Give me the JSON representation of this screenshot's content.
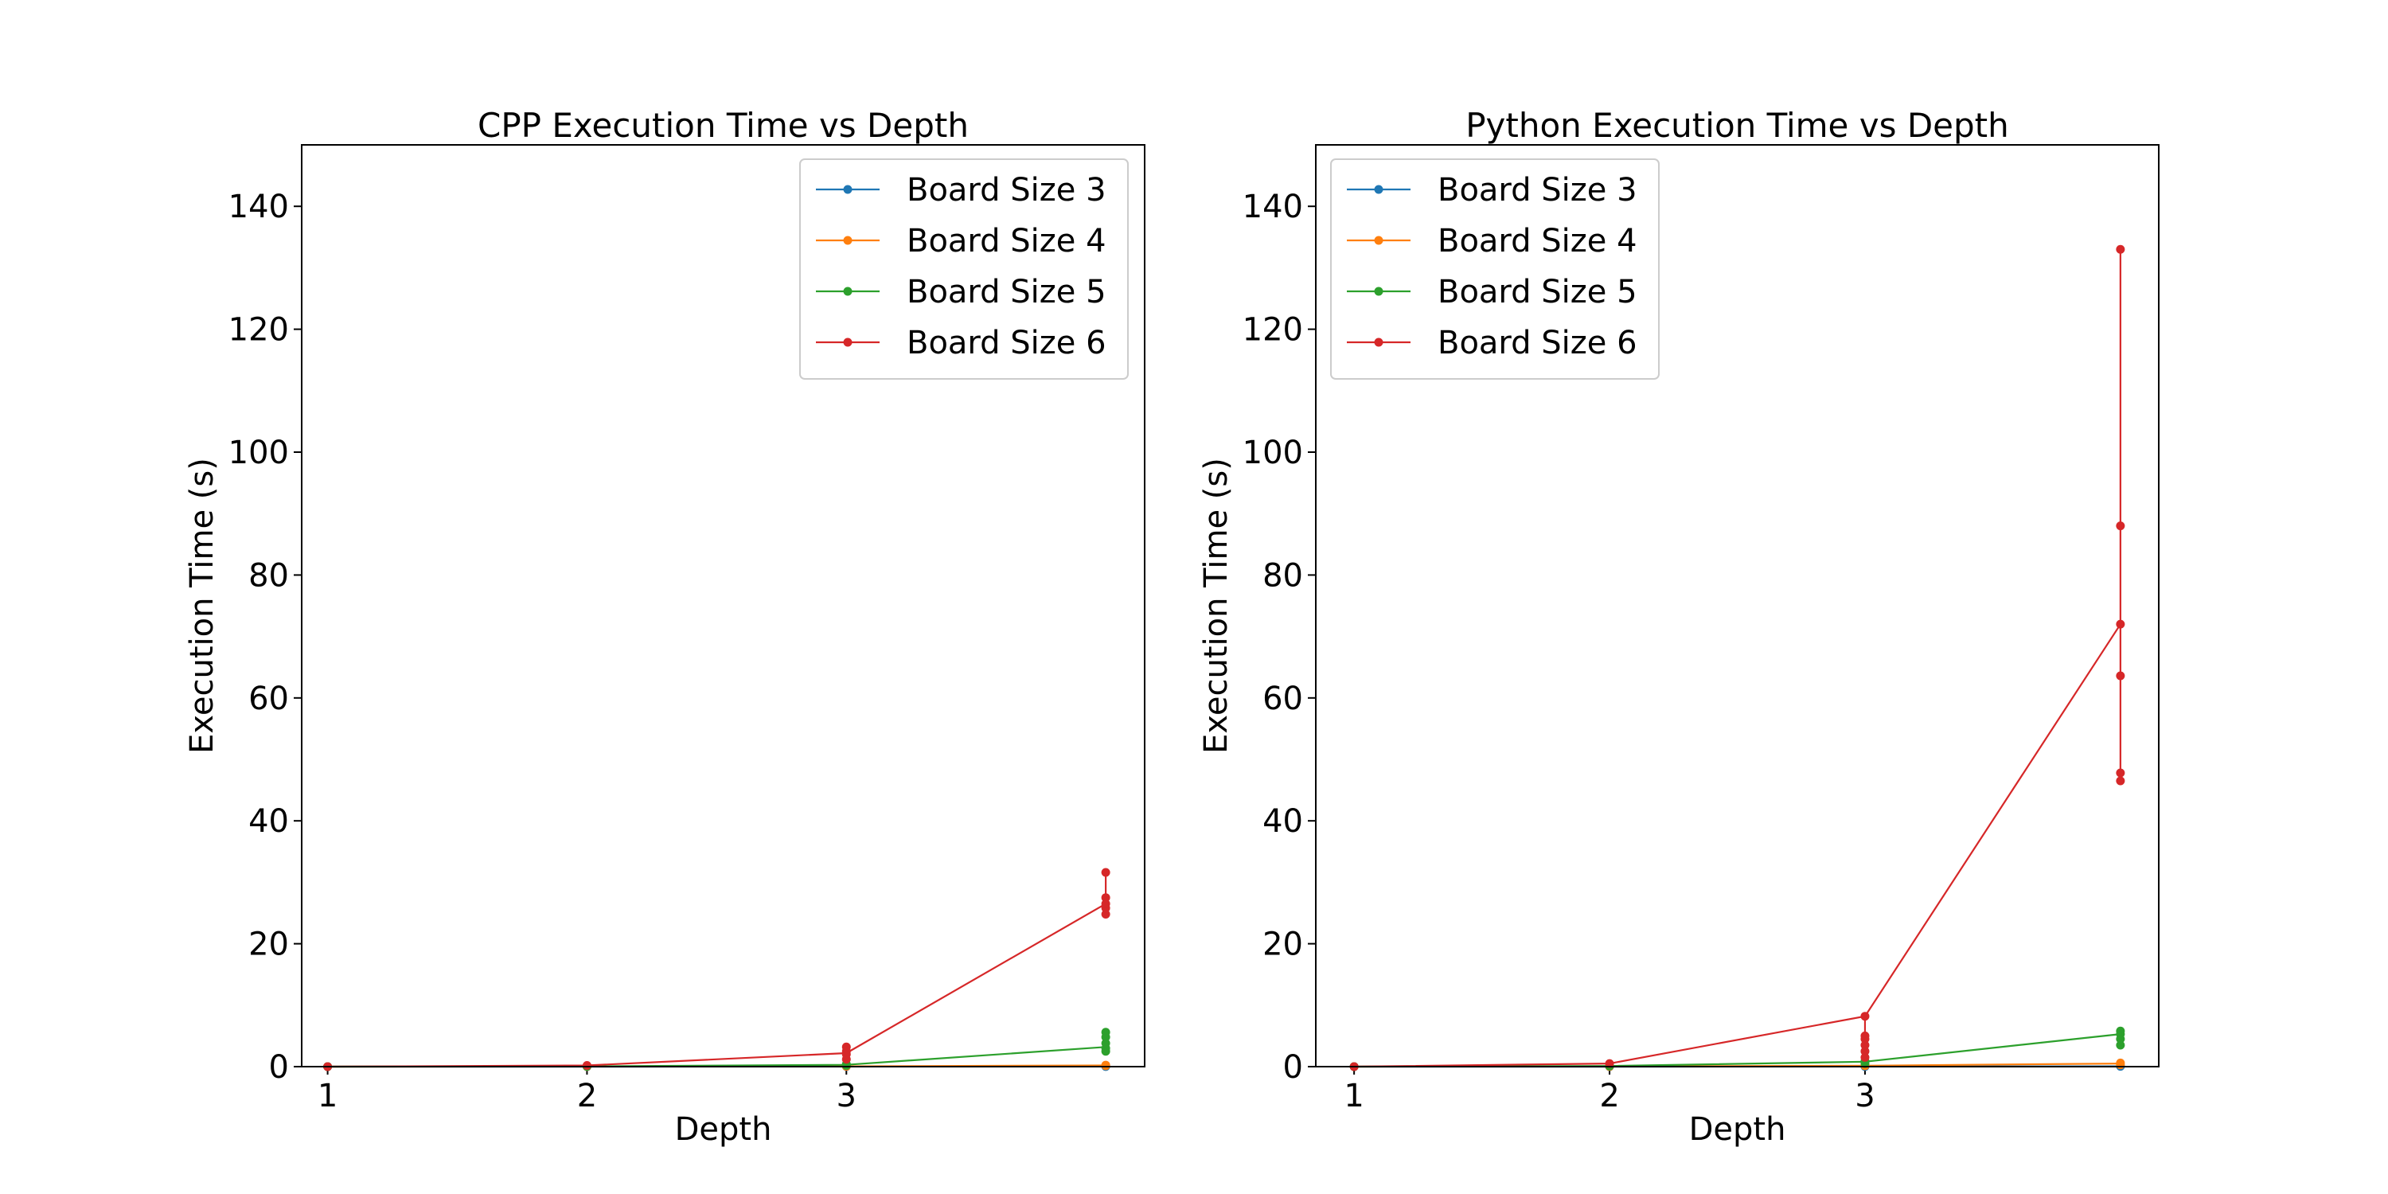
{
  "chart_data": [
    {
      "type": "line",
      "title": "CPP Execution Time vs Depth",
      "xlabel": "Depth",
      "ylabel": "Execution Time (s)",
      "xlim": [
        0.9,
        4.15
      ],
      "ylim": [
        0,
        150
      ],
      "xticks": [
        1,
        2,
        3
      ],
      "yticks": [
        0,
        20,
        40,
        60,
        80,
        100,
        120,
        140
      ],
      "legend_position": "upper right",
      "grid": false,
      "series": [
        {
          "name": "Board Size 3",
          "color": "#1f77b4",
          "x": [
            1,
            2,
            3,
            4
          ],
          "y": [
            0.0,
            0.0,
            0.01,
            0.02
          ],
          "points": [
            [
              1,
              0.0
            ],
            [
              2,
              0.0
            ],
            [
              3,
              0.01
            ],
            [
              4,
              0.02
            ]
          ]
        },
        {
          "name": "Board Size 4",
          "color": "#ff7f0e",
          "x": [
            1,
            2,
            3,
            4
          ],
          "y": [
            0.0,
            0.01,
            0.05,
            0.2
          ],
          "points": [
            [
              1,
              0.0
            ],
            [
              2,
              0.01
            ],
            [
              3,
              0.05
            ],
            [
              4,
              0.15
            ],
            [
              4,
              0.25
            ]
          ]
        },
        {
          "name": "Board Size 5",
          "color": "#2ca02c",
          "x": [
            1,
            2,
            3,
            4
          ],
          "y": [
            0.0,
            0.05,
            0.3,
            3.2
          ],
          "points": [
            [
              1,
              0.0
            ],
            [
              2,
              0.05
            ],
            [
              3,
              0.2
            ],
            [
              3,
              0.4
            ],
            [
              4,
              2.5
            ],
            [
              4,
              3.0
            ],
            [
              4,
              3.8
            ],
            [
              4,
              4.8
            ],
            [
              4,
              5.6
            ]
          ]
        },
        {
          "name": "Board Size 6",
          "color": "#d62728",
          "x": [
            1,
            2,
            3,
            4
          ],
          "y": [
            0.0,
            0.2,
            2.2,
            26.5
          ],
          "points": [
            [
              1,
              0.0
            ],
            [
              2,
              0.2
            ],
            [
              3,
              1.2
            ],
            [
              3,
              2.0
            ],
            [
              3,
              2.5
            ],
            [
              3,
              3.2
            ],
            [
              4,
              24.8
            ],
            [
              4,
              25.8
            ],
            [
              4,
              26.5
            ],
            [
              4,
              27.5
            ],
            [
              4,
              31.6
            ]
          ]
        }
      ]
    },
    {
      "type": "line",
      "title": "Python Execution Time vs Depth",
      "xlabel": "Depth",
      "ylabel": "Execution Time (s)",
      "xlim": [
        0.85,
        4.15
      ],
      "ylim": [
        0,
        150
      ],
      "xticks": [
        1,
        2,
        3
      ],
      "yticks": [
        0,
        20,
        40,
        60,
        80,
        100,
        120,
        140
      ],
      "legend_position": "upper left",
      "grid": false,
      "series": [
        {
          "name": "Board Size 3",
          "color": "#1f77b4",
          "x": [
            1,
            2,
            3,
            4
          ],
          "y": [
            0.0,
            0.0,
            0.02,
            0.05
          ],
          "points": [
            [
              1,
              0.0
            ],
            [
              2,
              0.0
            ],
            [
              3,
              0.02
            ],
            [
              4,
              0.05
            ]
          ]
        },
        {
          "name": "Board Size 4",
          "color": "#ff7f0e",
          "x": [
            1,
            2,
            3,
            4
          ],
          "y": [
            0.0,
            0.02,
            0.15,
            0.5
          ],
          "points": [
            [
              1,
              0.0
            ],
            [
              2,
              0.02
            ],
            [
              3,
              0.15
            ],
            [
              4,
              0.3
            ],
            [
              4,
              0.6
            ]
          ]
        },
        {
          "name": "Board Size 5",
          "color": "#2ca02c",
          "x": [
            1,
            2,
            3,
            4
          ],
          "y": [
            0.0,
            0.1,
            0.8,
            5.3
          ],
          "points": [
            [
              1,
              0.0
            ],
            [
              2,
              0.1
            ],
            [
              3,
              0.5
            ],
            [
              3,
              0.9
            ],
            [
              4,
              3.5
            ],
            [
              4,
              4.5
            ],
            [
              4,
              5.3
            ],
            [
              4,
              5.8
            ]
          ]
        },
        {
          "name": "Board Size 6",
          "color": "#d62728",
          "x": [
            1,
            2,
            3,
            4
          ],
          "y": [
            0.0,
            0.5,
            8.2,
            72.0
          ],
          "points": [
            [
              1,
              0.0
            ],
            [
              2,
              0.5
            ],
            [
              3,
              1.5
            ],
            [
              3,
              2.5
            ],
            [
              3,
              3.5
            ],
            [
              3,
              4.5
            ],
            [
              3,
              5.0
            ],
            [
              3,
              8.2
            ],
            [
              4,
              46.5
            ],
            [
              4,
              47.8
            ],
            [
              4,
              63.6
            ],
            [
              4,
              72.0
            ],
            [
              4,
              88.0
            ],
            [
              4,
              133.0
            ]
          ]
        }
      ]
    }
  ]
}
